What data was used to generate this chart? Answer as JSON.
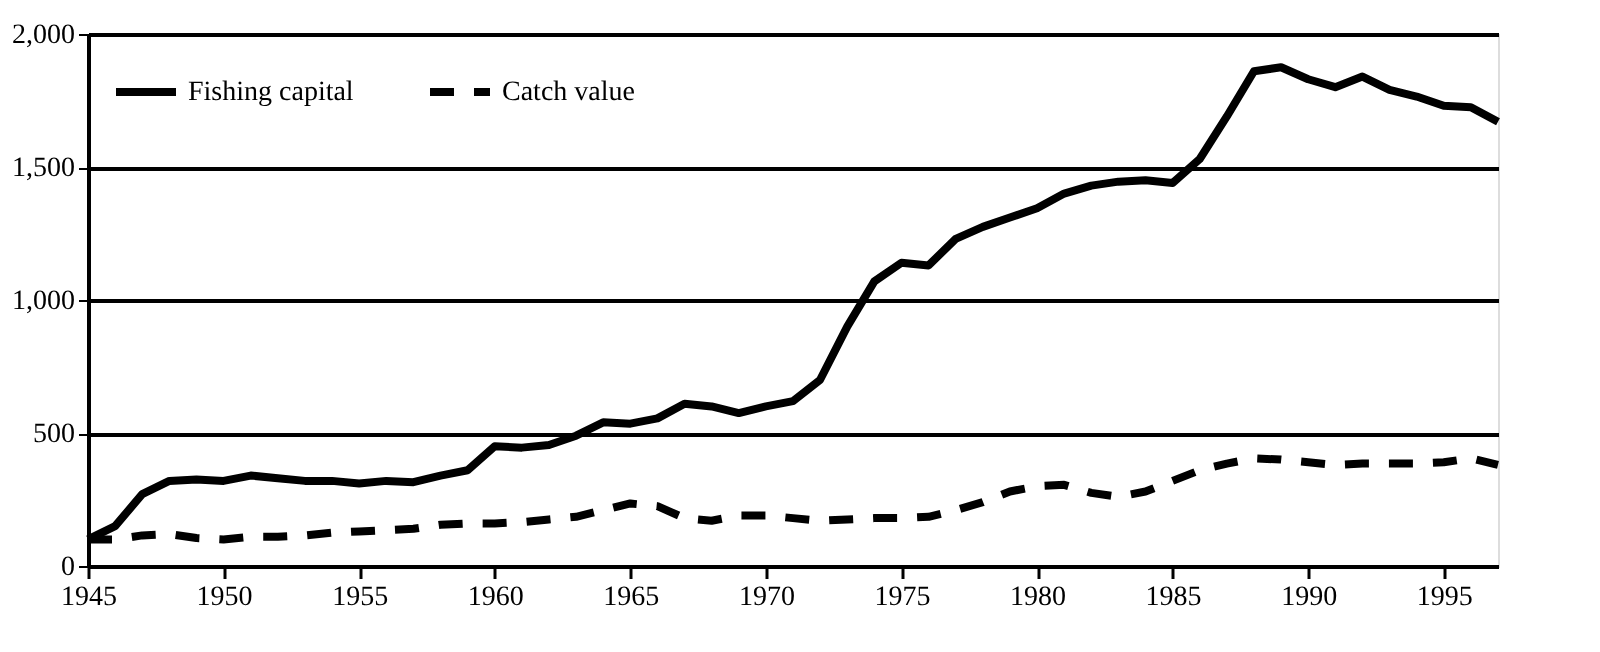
{
  "chart_data": {
    "type": "line",
    "x": [
      1945,
      1946,
      1947,
      1948,
      1949,
      1950,
      1951,
      1952,
      1953,
      1954,
      1955,
      1956,
      1957,
      1958,
      1959,
      1960,
      1961,
      1962,
      1963,
      1964,
      1965,
      1966,
      1967,
      1968,
      1969,
      1970,
      1971,
      1972,
      1973,
      1974,
      1975,
      1976,
      1977,
      1978,
      1979,
      1980,
      1981,
      1982,
      1983,
      1984,
      1985,
      1986,
      1987,
      1988,
      1989,
      1990,
      1991,
      1992,
      1993,
      1994,
      1995,
      1996,
      1997
    ],
    "series": [
      {
        "name": "Fishing capital",
        "color": "#000000",
        "line_style": "solid",
        "values": [
          100,
          150,
          270,
          320,
          325,
          320,
          340,
          330,
          320,
          320,
          310,
          320,
          315,
          340,
          360,
          450,
          445,
          455,
          490,
          540,
          535,
          555,
          610,
          600,
          575,
          600,
          620,
          700,
          900,
          1070,
          1140,
          1130,
          1230,
          1275,
          1310,
          1345,
          1400,
          1430,
          1445,
          1450,
          1440,
          1530,
          1690,
          1860,
          1875,
          1830,
          1800,
          1840,
          1790,
          1765,
          1730,
          1725,
          1670
        ]
      },
      {
        "name": "Catch value",
        "color": "#000000",
        "line_style": "dashed",
        "values": [
          100,
          100,
          115,
          120,
          105,
          100,
          110,
          110,
          115,
          125,
          130,
          135,
          140,
          155,
          160,
          160,
          165,
          175,
          185,
          210,
          235,
          225,
          180,
          170,
          190,
          190,
          180,
          170,
          175,
          180,
          180,
          185,
          210,
          240,
          280,
          300,
          305,
          275,
          260,
          280,
          320,
          360,
          385,
          405,
          400,
          390,
          380,
          385,
          385,
          385,
          390,
          405,
          380
        ]
      }
    ],
    "xlim": [
      1945,
      1997
    ],
    "xticks": [
      1945,
      1950,
      1955,
      1960,
      1965,
      1970,
      1975,
      1980,
      1985,
      1990,
      1995
    ],
    "ylim": [
      0,
      2000
    ],
    "yticks": [
      0,
      {
        "value": 500,
        "label": "500"
      },
      {
        "value": 1000,
        "label": "1,000"
      },
      {
        "value": 1500,
        "label": "1,500"
      },
      {
        "value": 2000,
        "label": "2,000"
      }
    ],
    "grid": "y",
    "legend": "top left",
    "marker": "none"
  }
}
